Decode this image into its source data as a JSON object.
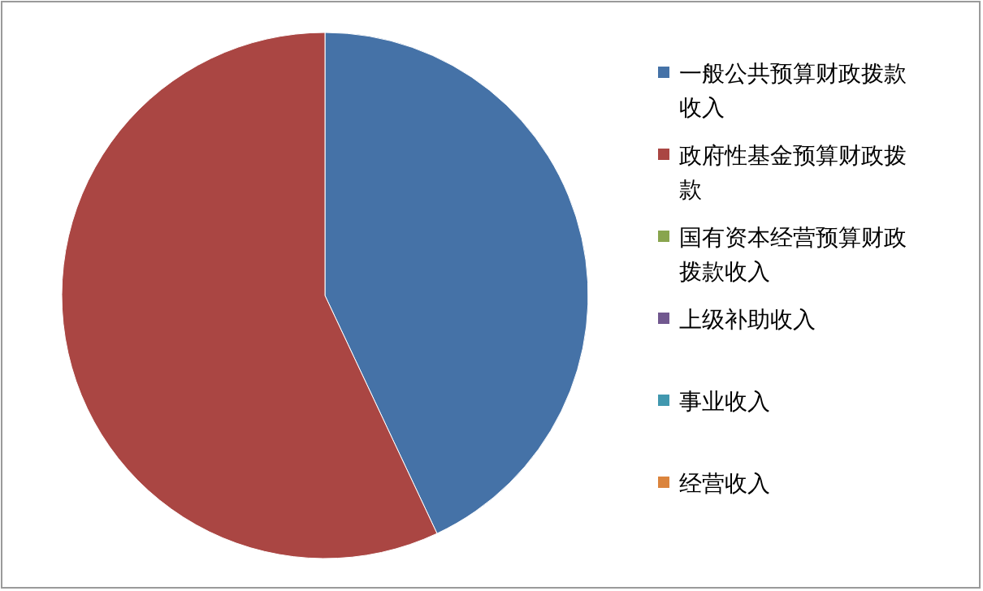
{
  "chart_data": {
    "type": "pie",
    "categories": [
      "一般公共预算财政拨款收入",
      "政府性基金预算财政拨款",
      "国有资本经营预算财政拨款收入",
      "上级补助收入",
      "事业收入",
      "经营收入"
    ],
    "values": [
      43,
      57,
      0,
      0,
      0,
      0
    ],
    "colors": [
      "#4572a7",
      "#aa4643",
      "#89a54e",
      "#71588f",
      "#4198af",
      "#db843d"
    ],
    "legend": "right"
  }
}
